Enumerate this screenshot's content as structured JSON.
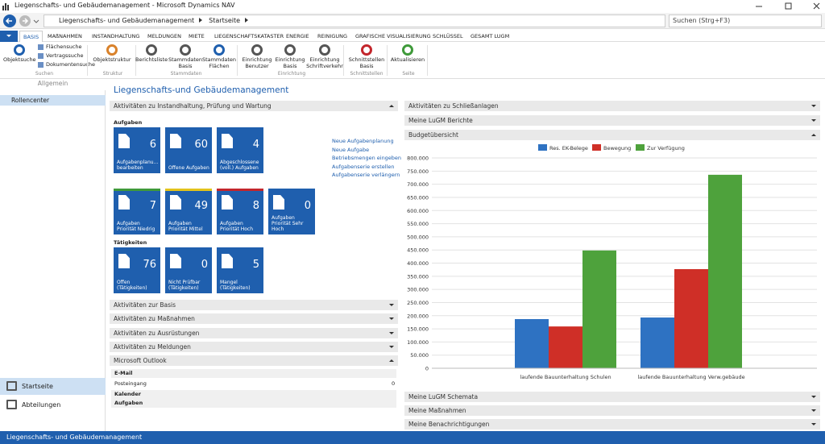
{
  "window": {
    "title": "Liegenschafts- und Gebäudemanagement - Microsoft Dynamics NAV"
  },
  "address": {
    "breadcrumb": [
      "Liegenschafts- und Gebäudemanagement",
      "Startseite"
    ],
    "search": "Suchen (Strg+F3)"
  },
  "ribbon": {
    "tabs": [
      "BASIS",
      "MAßNAHMEN",
      "INSTANDHALTUNG",
      "MELDUNGEN",
      "MIETE",
      "LIEGENSCHAFTSKATASTER",
      "ENERGIE",
      "REINIGUNG",
      "GRAFISCHE VISUALISIERUNG",
      "SCHLÜSSEL",
      "GESAMT LUGM"
    ],
    "groups": [
      {
        "name": "Suchen",
        "large": [
          "Objektsuche"
        ],
        "small": [
          "Flächensuche",
          "Vertragssuche",
          "Dokumentensuche"
        ]
      },
      {
        "name": "Struktur",
        "large": [
          "Objektstruktur"
        ]
      },
      {
        "name": "Stammdaten",
        "large": [
          "Berichtsliste",
          "Stammdaten Basis",
          "Stammdaten Flächen"
        ]
      },
      {
        "name": "Einrichtung",
        "large": [
          "Einrichtung Benutzer",
          "Einrichtung Basis",
          "Einrichtung Schriftverkehr"
        ]
      },
      {
        "name": "Schnittstellen",
        "large": [
          "Schnittstellen Basis"
        ]
      },
      {
        "name": "Seite",
        "large": [
          "Aktualisieren"
        ]
      }
    ],
    "collapsed_label": "Allgemein"
  },
  "nav": {
    "items": [
      "Rollencenter"
    ],
    "bottom": [
      "Startseite",
      "Abteilungen"
    ]
  },
  "page_title": "Liegenschafts-und Gebäudemanagement",
  "left": {
    "activity_part": {
      "title": "Aktivitäten zu Instandhaltung, Prüfung und Wartung",
      "tasks_heading": "Aufgaben",
      "tiles_row1": [
        {
          "value": 6,
          "label": "Aufgabenplanu... bearbeiten"
        },
        {
          "value": 60,
          "label": "Offene Aufgaben"
        },
        {
          "value": 4,
          "label": "Abgeschlossene (voll.) Aufgaben"
        }
      ],
      "links": [
        "Neue Aufgabenplanung",
        "Neue Aufgabe",
        "Betriebsmengen eingeben",
        "Aufgabenserie erstellen",
        "Aufgabenserie verlängern"
      ],
      "tiles_row2": [
        {
          "value": 7,
          "label": "Aufgaben Priorität Niedrig",
          "stripe": "#3f9a3a"
        },
        {
          "value": 49,
          "label": "Aufgaben Priorität Mittel",
          "stripe": "#e3c31c"
        },
        {
          "value": 8,
          "label": "Aufgaben Priorität Hoch",
          "stripe": "#c3262c"
        },
        {
          "value": 0,
          "label": "Aufgaben Priorität Sehr Hoch"
        }
      ],
      "activities_heading": "Tätigkeiten",
      "tiles_row3": [
        {
          "value": 76,
          "label": "Offen (Tätigkeiten)"
        },
        {
          "value": 0,
          "label": "Nicht Prüfbar (Tätigkeiten)"
        },
        {
          "value": 5,
          "label": "Mangel (Tätigkeiten)"
        }
      ]
    },
    "collapsed_parts": [
      "Aktivitäten zur Basis",
      "Aktivitäten zu Maßnahmen",
      "Aktivitäten zu Ausrüstungen",
      "Aktivitäten zu Meldungen"
    ],
    "outlook": {
      "title": "Microsoft Outlook",
      "email": "E-Mail",
      "items": [
        {
          "label": "Posteingang",
          "count": 0
        }
      ],
      "calendar": "Kalender",
      "tasks": "Aufgaben"
    }
  },
  "right": {
    "parts_top": [
      "Aktivitäten zu Schließanlagen",
      "Meine LuGM Berichte"
    ],
    "parts_bottom": [
      "Meine LuGM Schemata",
      "Meine Maßnahmen",
      "Meine Benachrichtigungen"
    ]
  },
  "chart_data": {
    "type": "bar",
    "title": "Budgetübersicht",
    "categories": [
      "laufende Bauunterhaltung Schulen",
      "laufende Bauunterhaltung Verw.gebäude"
    ],
    "series": [
      {
        "name": "Res. EK-Belege",
        "color": "#2e72c2",
        "values": [
          187000,
          193000
        ]
      },
      {
        "name": "Bewegung",
        "color": "#cf2f27",
        "values": [
          159000,
          377000
        ]
      },
      {
        "name": "Zur Verfügung",
        "color": "#4ea23c",
        "values": [
          448000,
          736000
        ]
      }
    ],
    "ylim": [
      0,
      800000
    ],
    "yticks": [
      0,
      {
        "value": 50000,
        "label": "50.000"
      },
      {
        "value": 100000,
        "label": "100.000"
      },
      {
        "value": 150000,
        "label": "150.000"
      },
      {
        "value": 200000,
        "label": "200.000"
      },
      {
        "value": 250000,
        "label": "250.000"
      },
      {
        "value": 300000,
        "label": "300.000"
      },
      {
        "value": 350000,
        "label": "350.000"
      },
      {
        "value": 400000,
        "label": "400.000"
      },
      {
        "value": 450000,
        "label": "450.000"
      },
      {
        "value": 500000,
        "label": "500.000"
      },
      {
        "value": 550000,
        "label": "550.000"
      },
      {
        "value": 600000,
        "label": "600.000"
      },
      {
        "value": 650000,
        "label": "650.000"
      },
      {
        "value": 700000,
        "label": "700.000"
      },
      {
        "value": 750000,
        "label": "750.000"
      },
      {
        "value": 800000,
        "label": "800.000"
      }
    ],
    "grid": true,
    "legend": "top"
  },
  "status_bar": "Liegenschafts- und Gebäudemanagement"
}
